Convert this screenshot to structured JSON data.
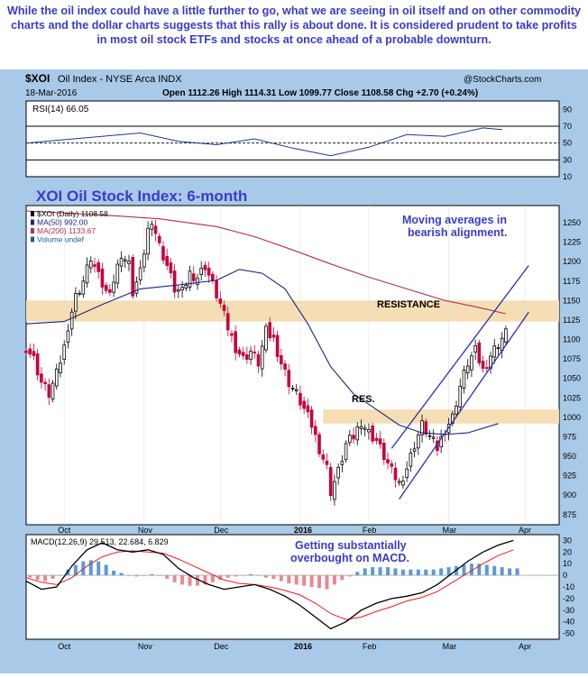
{
  "headline": "While the oil index could have a little further to go, what we are seeing in oil itself and on other commodity charts and the dollar charts suggests that this rally is about done. It is considered prudent to take profits in most oil stock ETFs and stocks at once ahead of a probable downturn.",
  "header": {
    "symbol": "$XOI",
    "name": "Oil Index - NYSE Arca INDX",
    "credit": "@StockCharts.com",
    "date": "18-Mar-2016",
    "quote": "Open 1112.26  High 1114.31  Low 1099.77  Close 1108.58  Chg +2.70 (+0.24%)",
    "quote_arrow": "▲"
  },
  "colors": {
    "up": "#000000",
    "down": "#c8003c",
    "ma50": "#1a237e",
    "ma200": "#b03050",
    "band": "#f5deb3",
    "channel": "#2b2bb0",
    "macd_hist": "#5b9bd5",
    "macd_hist_neg": "#e88896",
    "annotation": "#3b3bc8"
  },
  "annotations": {
    "title": "XOI Oil Stock Index: 6-month",
    "ma_note_line1": "Moving averages in",
    "ma_note_line2": "bearish alignment.",
    "resistance": "RESISTANCE",
    "res": "RES.",
    "macd_note_line1": "Getting substantially",
    "macd_note_line2": "overbought on MACD."
  },
  "chart_data": [
    {
      "type": "line",
      "panel": "RSI",
      "legend": "RSI(14) 66.05",
      "ylim": [
        10,
        100
      ],
      "y_ticks": [
        90,
        70,
        50,
        30,
        10
      ],
      "reference_lines": [
        70,
        50,
        30
      ],
      "x": [
        0,
        10,
        20,
        30,
        40,
        50,
        60,
        70,
        80,
        90,
        100,
        110,
        120,
        125
      ],
      "values": [
        50,
        54,
        58,
        62,
        52,
        48,
        55,
        44,
        35,
        45,
        60,
        58,
        68,
        66
      ]
    },
    {
      "type": "candlestick",
      "panel": "price",
      "legend": [
        "$XOI (Daily) 1108.58",
        "MA(50) 992.00",
        "MA(200) 1133.67",
        "Volume undef"
      ],
      "ylim": [
        862,
        1272
      ],
      "y_ticks": [
        1250,
        1225,
        1200,
        1175,
        1150,
        1125,
        1100,
        1075,
        1050,
        1025,
        1000,
        975,
        950,
        925,
        900,
        875
      ],
      "x_labels": [
        "Oct",
        "Nov",
        "Dec",
        "2016",
        "Feb",
        "Mar",
        "Apr"
      ],
      "x_label_days": [
        10,
        31,
        51,
        72,
        90,
        111,
        131
      ],
      "x_domain": [
        0,
        140
      ],
      "resistance_zone": [
        1123,
        1150
      ],
      "res_zone": [
        992,
        1010
      ],
      "close_path": [
        [
          0,
          1090
        ],
        [
          2,
          1075
        ],
        [
          4,
          1045
        ],
        [
          6,
          1030
        ],
        [
          8,
          1055
        ],
        [
          10,
          1090
        ],
        [
          11,
          1118
        ],
        [
          13,
          1155
        ],
        [
          15,
          1175
        ],
        [
          17,
          1205
        ],
        [
          19,
          1180
        ],
        [
          21,
          1160
        ],
        [
          23,
          1175
        ],
        [
          25,
          1210
        ],
        [
          27,
          1195
        ],
        [
          28,
          1160
        ],
        [
          30,
          1185
        ],
        [
          32,
          1240
        ],
        [
          33,
          1255
        ],
        [
          35,
          1220
        ],
        [
          37,
          1195
        ],
        [
          39,
          1165
        ],
        [
          41,
          1160
        ],
        [
          43,
          1185
        ],
        [
          45,
          1180
        ],
        [
          47,
          1195
        ],
        [
          49,
          1170
        ],
        [
          51,
          1145
        ],
        [
          53,
          1115
        ],
        [
          55,
          1090
        ],
        [
          57,
          1075
        ],
        [
          59,
          1085
        ],
        [
          61,
          1070
        ],
        [
          63,
          1110
        ],
        [
          65,
          1100
        ],
        [
          67,
          1070
        ],
        [
          69,
          1045
        ],
        [
          71,
          1030
        ],
        [
          73,
          1010
        ],
        [
          75,
          990
        ],
        [
          77,
          960
        ],
        [
          79,
          935
        ],
        [
          80,
          905
        ],
        [
          82,
          930
        ],
        [
          84,
          965
        ],
        [
          86,
          975
        ],
        [
          88,
          995
        ],
        [
          90,
          980
        ],
        [
          92,
          970
        ],
        [
          94,
          950
        ],
        [
          96,
          930
        ],
        [
          98,
          915
        ],
        [
          100,
          935
        ],
        [
          102,
          965
        ],
        [
          104,
          990
        ],
        [
          106,
          975
        ],
        [
          108,
          960
        ],
        [
          110,
          985
        ],
        [
          112,
          1000
        ],
        [
          114,
          1040
        ],
        [
          116,
          1070
        ],
        [
          118,
          1085
        ],
        [
          120,
          1060
        ],
        [
          122,
          1080
        ],
        [
          124,
          1095
        ],
        [
          126,
          1108
        ]
      ],
      "ma50": [
        [
          0,
          1120
        ],
        [
          10,
          1123
        ],
        [
          20,
          1145
        ],
        [
          30,
          1165
        ],
        [
          40,
          1170
        ],
        [
          50,
          1176
        ],
        [
          56,
          1190
        ],
        [
          62,
          1185
        ],
        [
          68,
          1165
        ],
        [
          74,
          1120
        ],
        [
          80,
          1065
        ],
        [
          86,
          1030
        ],
        [
          92,
          1010
        ],
        [
          98,
          990
        ],
        [
          104,
          980
        ],
        [
          110,
          978
        ],
        [
          116,
          980
        ],
        [
          124,
          992
        ]
      ],
      "ma200": [
        [
          0,
          1265
        ],
        [
          20,
          1260
        ],
        [
          35,
          1255
        ],
        [
          50,
          1245
        ],
        [
          60,
          1232
        ],
        [
          70,
          1215
        ],
        [
          80,
          1197
        ],
        [
          90,
          1180
        ],
        [
          100,
          1165
        ],
        [
          110,
          1150
        ],
        [
          118,
          1142
        ],
        [
          126,
          1133
        ]
      ],
      "channel_upper": [
        [
          96,
          960
        ],
        [
          132,
          1195
        ]
      ],
      "channel_lower": [
        [
          98,
          895
        ],
        [
          132,
          1135
        ]
      ]
    },
    {
      "type": "line",
      "panel": "MACD",
      "legend": "MACD(12,26,9) 29.513, 22.684, 6.829",
      "ylim": [
        -55,
        35
      ],
      "y_ticks": [
        30,
        20,
        10,
        0,
        -10,
        -20,
        -30,
        -40,
        -50
      ],
      "macd": [
        [
          0,
          -5
        ],
        [
          4,
          -12
        ],
        [
          8,
          -10
        ],
        [
          12,
          8
        ],
        [
          16,
          22
        ],
        [
          20,
          28
        ],
        [
          24,
          22
        ],
        [
          28,
          20
        ],
        [
          32,
          22
        ],
        [
          36,
          18
        ],
        [
          40,
          6
        ],
        [
          44,
          -2
        ],
        [
          48,
          -8
        ],
        [
          52,
          -12
        ],
        [
          56,
          -10
        ],
        [
          60,
          -8
        ],
        [
          64,
          -12
        ],
        [
          68,
          -18
        ],
        [
          72,
          -26
        ],
        [
          76,
          -36
        ],
        [
          80,
          -46
        ],
        [
          84,
          -40
        ],
        [
          88,
          -30
        ],
        [
          92,
          -24
        ],
        [
          96,
          -20
        ],
        [
          100,
          -18
        ],
        [
          104,
          -15
        ],
        [
          108,
          -8
        ],
        [
          112,
          2
        ],
        [
          116,
          12
        ],
        [
          120,
          20
        ],
        [
          124,
          26
        ],
        [
          128,
          30
        ]
      ],
      "signal": [
        [
          0,
          -2
        ],
        [
          4,
          -6
        ],
        [
          8,
          -8
        ],
        [
          12,
          -2
        ],
        [
          16,
          8
        ],
        [
          20,
          16
        ],
        [
          24,
          20
        ],
        [
          28,
          21
        ],
        [
          32,
          20
        ],
        [
          36,
          19
        ],
        [
          40,
          14
        ],
        [
          44,
          8
        ],
        [
          48,
          2
        ],
        [
          52,
          -4
        ],
        [
          56,
          -7
        ],
        [
          60,
          -8
        ],
        [
          64,
          -10
        ],
        [
          68,
          -13
        ],
        [
          72,
          -17
        ],
        [
          76,
          -24
        ],
        [
          80,
          -33
        ],
        [
          84,
          -38
        ],
        [
          88,
          -36
        ],
        [
          92,
          -31
        ],
        [
          96,
          -27
        ],
        [
          100,
          -22
        ],
        [
          104,
          -19
        ],
        [
          108,
          -14
        ],
        [
          112,
          -6
        ],
        [
          116,
          2
        ],
        [
          120,
          10
        ],
        [
          124,
          17
        ],
        [
          128,
          22
        ]
      ],
      "histogram": [
        [
          1,
          -2
        ],
        [
          3,
          -4
        ],
        [
          5,
          -5
        ],
        [
          7,
          -3
        ],
        [
          9,
          0
        ],
        [
          11,
          5
        ],
        [
          13,
          9
        ],
        [
          15,
          12
        ],
        [
          17,
          13
        ],
        [
          19,
          12
        ],
        [
          21,
          9
        ],
        [
          23,
          4
        ],
        [
          25,
          2
        ],
        [
          27,
          0
        ],
        [
          29,
          -1
        ],
        [
          31,
          0
        ],
        [
          33,
          1
        ],
        [
          35,
          0
        ],
        [
          37,
          -3
        ],
        [
          39,
          -6
        ],
        [
          41,
          -8
        ],
        [
          43,
          -9
        ],
        [
          45,
          -9
        ],
        [
          47,
          -8
        ],
        [
          49,
          -6
        ],
        [
          51,
          -4
        ],
        [
          53,
          -2
        ],
        [
          55,
          -1
        ],
        [
          57,
          0
        ],
        [
          59,
          1
        ],
        [
          61,
          0
        ],
        [
          63,
          -2
        ],
        [
          65,
          -3
        ],
        [
          67,
          -5
        ],
        [
          69,
          -7
        ],
        [
          71,
          -8
        ],
        [
          73,
          -9
        ],
        [
          75,
          -10
        ],
        [
          77,
          -11
        ],
        [
          79,
          -12
        ],
        [
          81,
          -8
        ],
        [
          83,
          -4
        ],
        [
          85,
          -1
        ],
        [
          87,
          3
        ],
        [
          89,
          6
        ],
        [
          91,
          7
        ],
        [
          93,
          7
        ],
        [
          95,
          7
        ],
        [
          97,
          6
        ],
        [
          99,
          5
        ],
        [
          101,
          5
        ],
        [
          103,
          5
        ],
        [
          105,
          5
        ],
        [
          107,
          5
        ],
        [
          109,
          6
        ],
        [
          111,
          7
        ],
        [
          113,
          8
        ],
        [
          115,
          9
        ],
        [
          117,
          10
        ],
        [
          119,
          10
        ],
        [
          121,
          9
        ],
        [
          123,
          8
        ],
        [
          125,
          7
        ],
        [
          127,
          6
        ],
        [
          129,
          6
        ]
      ]
    }
  ]
}
